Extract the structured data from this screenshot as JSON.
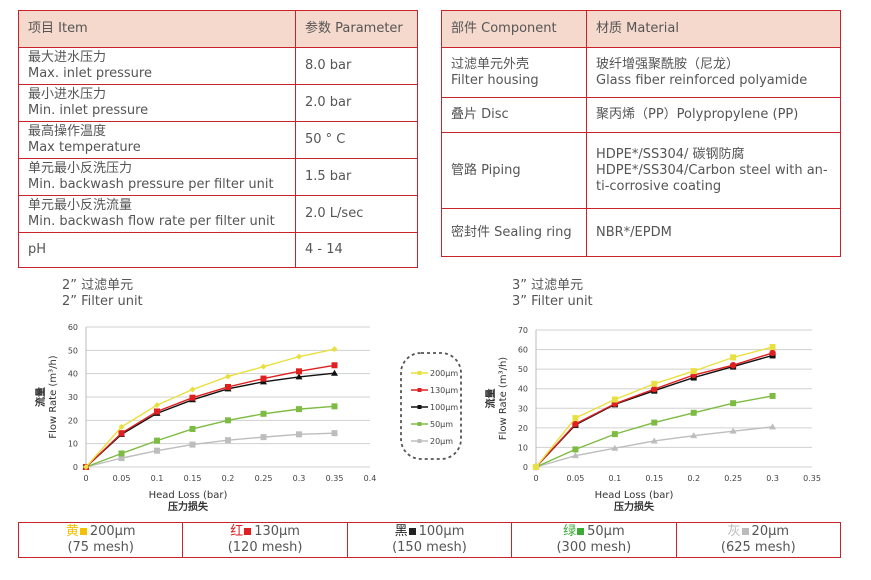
{
  "spec_table": {
    "headers": [
      "项目 Item",
      "参数 Parameter"
    ],
    "rows": [
      {
        "zh": "最大进水压力",
        "en": "Max. inlet pressure",
        "value": "8.0 bar"
      },
      {
        "zh": "最小进水压力",
        "en": "Min. inlet pressure",
        "value": "2.0 bar"
      },
      {
        "zh": "最高操作温度",
        "en": "Max temperature",
        "value": "50 ° C"
      },
      {
        "zh": "单元最小反洗压力",
        "en": "Min. backwash pressure per filter unit",
        "value": "1.5 bar"
      },
      {
        "zh": "单元最小反洗流量",
        "en": "Min. backwash flow rate per filter unit",
        "value": "2.0 L/sec"
      },
      {
        "zh": "",
        "en": "pH",
        "value": "4 - 14"
      }
    ]
  },
  "material_table": {
    "headers": [
      "部件 Component",
      "材质 Material"
    ],
    "rows": [
      {
        "component": [
          "过滤单元外壳",
          "Filter housing"
        ],
        "material": [
          "玻纤增强聚酰胺（尼龙）",
          "Glass fiber reinforced polyamide"
        ]
      },
      {
        "component": [
          "叠片 Disc"
        ],
        "material": [
          "聚丙烯（PP）Polypropylene (PP)"
        ]
      },
      {
        "component": [
          "管路 Piping"
        ],
        "material": [
          "HDPE*/SS304/ 碳钢防腐",
          "HDPE*/SS304/Carbon steel with an-",
          "ti-corrosive coating"
        ]
      },
      {
        "component": [
          "密封件 Sealing ring"
        ],
        "material": [
          "NBR*/EPDM"
        ]
      }
    ]
  },
  "chart_data": [
    {
      "type": "line",
      "title": [
        "2” 过滤单元",
        "2” Filter unit"
      ],
      "xlabel": [
        "Head Loss (bar)",
        "压力损失"
      ],
      "ylabel": [
        "流量",
        "Flow Rate (m³/h)"
      ],
      "xlim": [
        0,
        0.4
      ],
      "ylim": [
        0,
        60
      ],
      "xticks": [
        "0",
        "0.05",
        "0.1",
        "0.15",
        "0.2",
        "0.25",
        "0.3",
        "0.35",
        "0.4"
      ],
      "yticks": [
        "0",
        "10",
        "20",
        "30",
        "40",
        "50",
        "60"
      ],
      "grid": true,
      "legend_placement": "right",
      "x": [
        0,
        0.05,
        0.1,
        0.15,
        0.2,
        0.25,
        0.3,
        0.35
      ],
      "series": [
        {
          "name": "200μm",
          "color": "#e8e040",
          "marker": "diamond",
          "values": [
            0,
            17.2,
            26.5,
            33.2,
            38.8,
            43,
            47.3,
            50.5
          ]
        },
        {
          "name": "130μm",
          "color": "#e02020",
          "marker": "square",
          "values": [
            0,
            14.5,
            23.8,
            29.7,
            34.3,
            37.9,
            41,
            43.6
          ]
        },
        {
          "name": "100μm",
          "color": "#111111",
          "marker": "triangle",
          "values": [
            0,
            14,
            23,
            28.8,
            33.5,
            36.5,
            38.6,
            40.2
          ]
        },
        {
          "name": "50μm",
          "color": "#7dbb42",
          "marker": "square",
          "values": [
            0,
            5.8,
            11.3,
            16.3,
            20,
            22.8,
            24.8,
            26
          ]
        },
        {
          "name": "20μm",
          "color": "#bdbdbd",
          "marker": "square",
          "values": [
            0,
            3.8,
            7,
            9.6,
            11.5,
            12.8,
            14,
            14.5
          ]
        }
      ]
    },
    {
      "type": "line",
      "title": [
        "3” 过滤单元",
        "3” Filter unit"
      ],
      "xlabel": [
        "Head Loss (bar)",
        "压力损失"
      ],
      "ylabel": [
        "流量",
        "Flow Rate (m³/h)"
      ],
      "xlim": [
        0,
        0.35
      ],
      "ylim": [
        0,
        70
      ],
      "xticks": [
        "0",
        "0.05",
        "0.1",
        "0.15",
        "0.2",
        "0.25",
        "0.3",
        "0.35"
      ],
      "yticks": [
        "0",
        "10",
        "20",
        "30",
        "40",
        "50",
        "60",
        "70"
      ],
      "grid": true,
      "x": [
        0,
        0.05,
        0.1,
        0.15,
        0.2,
        0.25,
        0.3
      ],
      "series": [
        {
          "color": "#e8e040",
          "marker": "square",
          "values": [
            0,
            25,
            34.5,
            42.5,
            49,
            56,
            61.3
          ]
        },
        {
          "color": "#e02020",
          "marker": "circle",
          "values": [
            0,
            22,
            32.3,
            39.8,
            47,
            52,
            58.3
          ]
        },
        {
          "color": "#111111",
          "marker": "square",
          "values": [
            0,
            21.5,
            32,
            39,
            45.7,
            51.3,
            57
          ]
        },
        {
          "color": "#7dbb42",
          "marker": "square",
          "values": [
            0,
            9,
            16.8,
            22.7,
            27.7,
            32.6,
            36.3
          ]
        },
        {
          "color": "#bdbdbd",
          "marker": "triangle",
          "values": [
            0,
            5.8,
            9.6,
            13.3,
            16,
            18.3,
            20.5
          ]
        }
      ]
    }
  ],
  "mesh_legend": [
    {
      "zh": "黄",
      "size": "200μm",
      "mesh": "(75 mesh)",
      "color": "#f5c000"
    },
    {
      "zh": "红",
      "size": "130μm",
      "mesh": "(120 mesh)",
      "color": "#e02020"
    },
    {
      "zh": "黑",
      "size": "100μm",
      "mesh": "(150 mesh)",
      "color": "#222222"
    },
    {
      "zh": "绿",
      "size": "50μm",
      "mesh": "(300 mesh)",
      "color": "#3aaa35"
    },
    {
      "zh": "灰",
      "size": "20μm",
      "mesh": "(625 mesh)",
      "color": "#bbbbbb"
    }
  ]
}
